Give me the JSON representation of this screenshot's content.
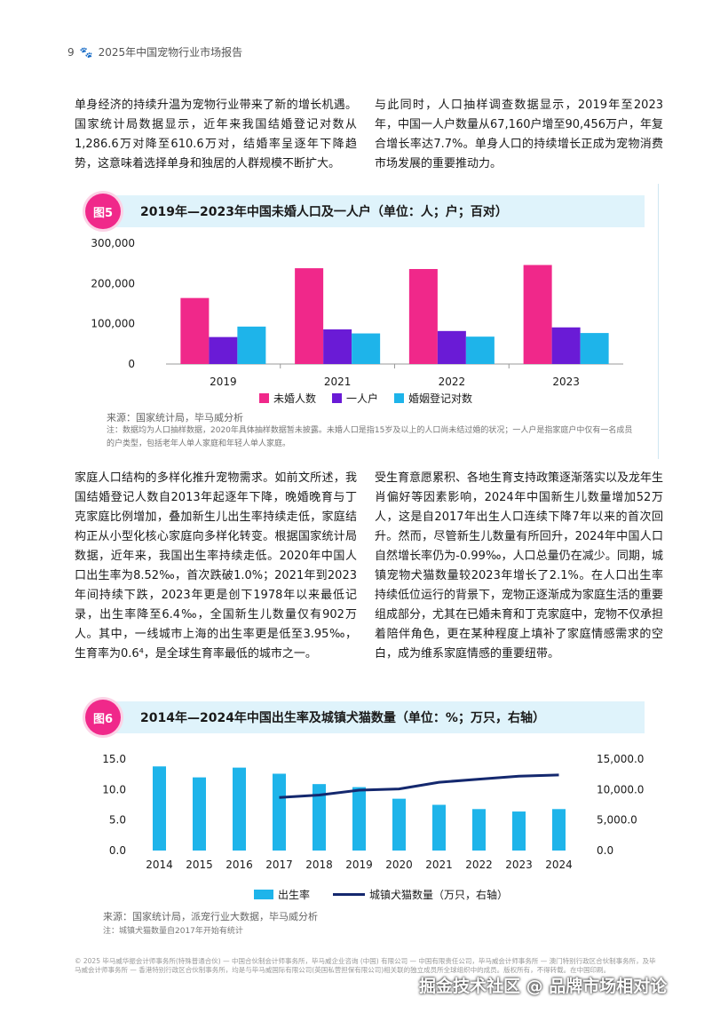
{
  "header": {
    "page_number": "9",
    "title": "2025年中国宠物行业市场报告"
  },
  "text": {
    "para_l1": "单身经济的持续升温为宠物行业带来了新的增长机遇。国家统计局数据显示，近年来我国结婚登记对数从1,286.6万对降至610.6万对，结婚率呈逐年下降趋势，这意味着选择单身和独居的人群规模不断扩大。",
    "para_r1": "与此同时，人口抽样调查数据显示，2019年至2023年，中国一人户数量从67,160户增至90,456万户，年复合增长率达7.7%。单身人口的持续增长正成为宠物消费市场发展的重要推动力。",
    "para_l2": "家庭人口结构的多样化推升宠物需求。如前文所述，我国结婚登记人数自2013年起逐年下降，晚婚晚育与丁克家庭比例增加，叠加新生儿出生率持续走低，家庭结构正从小型化核心家庭向多样化转变。根据国家统计局数据，近年来，我国出生率持续走低。2020年中国人口出生率为8.52‰，首次跌破1.0%；2021年到2023年间持续下跌，2023年更是创下1978年以来最低记录，出生率降至6.4‰，全国新生儿数量仅有902万人。其中，一线城市上海的出生率更是低至3.95‰，生育率为0.6⁴，是全球生育率最低的城市之一。",
    "para_r2": "受生育意愿累积、各地生育支持政策逐渐落实以及龙年生肖偏好等因素影响，2024年中国新生儿数量增加52万人，这是自2017年出生人口连续下降7年以来的首次回升。然而，尽管新生儿数量有所回升，2024年中国人口自然增长率仍为-0.99‰，人口总量仍在减少。同期，城镇宠物犬猫数量较2023年增长了2.1%。在人口出生率持续低位运行的背景下，宠物正逐渐成为家庭生活的重要组成部分，尤其在已婚未育和丁克家庭中，宠物不仅承担着陪伴角色，更在某种程度上填补了家庭情感需求的空白，成为维系家庭情感的重要纽带。"
  },
  "fig5": {
    "tag": "图5",
    "title": "2019年—2023年中国未婚人口及一人户（单位：人；户；百对）",
    "source": "来源：国家统计局，毕马威分析",
    "note": "注：数据均为人口抽样数据，2020年具体抽样数据暂未披露。未婚人口是指15岁及以上的人口尚未结过婚的状况；一人户是指家庭户中仅有一名成员的户类型，包括老年人单人家庭和年轻人单人家庭。"
  },
  "fig6": {
    "tag": "图6",
    "title": "2014年—2024年中国出生率及城镇犬猫数量（单位：%；万只，右轴）",
    "source": "来源：国家统计局，派宠行业大数据，毕马威分析",
    "note": "注：城镇犬猫数量自2017年开始有统计"
  },
  "chart_data": [
    {
      "type": "bar",
      "categories": [
        "2019",
        "2021",
        "2022",
        "2023"
      ],
      "series": [
        {
          "name": "未婚人数",
          "color": "#f0288a",
          "values": [
            164000,
            238000,
            236000,
            246000
          ]
        },
        {
          "name": "一人户",
          "color": "#6a1bd6",
          "values": [
            67000,
            86000,
            82000,
            91000
          ]
        },
        {
          "name": "婚姻登记对数",
          "color": "#1eb4ea",
          "values": [
            93000,
            76000,
            68000,
            77000
          ]
        }
      ],
      "ylim": [
        0,
        300000
      ],
      "yticks": [
        "0",
        "100,000",
        "200,000",
        "300,000"
      ],
      "legend": "bottom"
    },
    {
      "type": "bar+line",
      "categories": [
        "2014",
        "2015",
        "2016",
        "2017",
        "2018",
        "2019",
        "2020",
        "2021",
        "2022",
        "2023",
        "2024"
      ],
      "series": [
        {
          "name": "出生率",
          "color": "#1eb4ea",
          "axis": "left",
          "values": [
            13.8,
            12.0,
            13.6,
            12.6,
            10.9,
            10.4,
            8.5,
            7.5,
            6.8,
            6.4,
            6.8
          ]
        },
        {
          "name": "城镇犬猫数量（万只，右轴）",
          "color": "#14286e",
          "axis": "right",
          "values": [
            null,
            null,
            null,
            8700,
            9100,
            9900,
            10100,
            11200,
            11700,
            12200,
            12400
          ]
        }
      ],
      "ylim_left": [
        0,
        15
      ],
      "ylim_right": [
        0,
        15000
      ],
      "yticks_left": [
        "0.0",
        "5.0",
        "10.0",
        "15.0"
      ],
      "yticks_right": [
        "0.0",
        "5,000.0",
        "10,000.0",
        "15,000.0"
      ],
      "legend": "bottom"
    }
  ],
  "footer": "© 2025 毕马威华振会计师事务所(特殊普通合伙) — 中国合伙制会计师事务所，毕马威企业咨询 (中国) 有限公司 — 中国有限责任公司，毕马威会计师事务所 — 澳门特别行政区合伙制事务所，及毕马威会计师事务所 — 香港特别行政区合伙制事务所，均是与毕马威国际有限公司(英国私营担保有限公司)相关联的独立成员所全球组织中的成员。版权所有，不得转载。在中国印刷。",
  "watermark": "掘金技术社区 @ 品牌市场相对论"
}
